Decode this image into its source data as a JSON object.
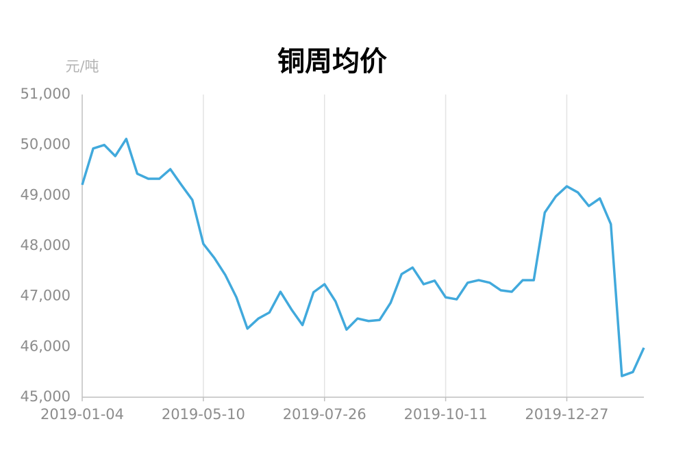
{
  "chart_data": {
    "type": "line",
    "title": "铜周均价",
    "y_label": "元/吨",
    "categories": [
      "2019-01-04",
      null,
      null,
      null,
      null,
      null,
      null,
      null,
      null,
      null,
      null,
      "2019-05-10",
      null,
      null,
      null,
      null,
      null,
      null,
      null,
      null,
      null,
      null,
      "2019-07-26",
      null,
      null,
      null,
      null,
      null,
      null,
      null,
      null,
      null,
      null,
      "2019-10-11",
      null,
      null,
      null,
      null,
      null,
      null,
      null,
      null,
      null,
      null,
      "2019-12-27",
      null,
      null,
      null,
      null,
      null,
      null,
      null
    ],
    "values": [
      49210,
      49930,
      50000,
      49780,
      50120,
      49430,
      49330,
      49330,
      49520,
      49210,
      48910,
      48040,
      47760,
      47420,
      46980,
      46360,
      46560,
      46680,
      47090,
      46740,
      46430,
      47080,
      47240,
      46900,
      46340,
      46560,
      46510,
      46530,
      46870,
      47440,
      47570,
      47240,
      47310,
      46980,
      46940,
      47270,
      47320,
      47270,
      47120,
      47090,
      47320,
      47320,
      48660,
      48980,
      49180,
      49060,
      48790,
      48940,
      48430,
      45420,
      45500,
      45980
    ],
    "color": "#41a9dc",
    "ylim": [
      45000,
      51000
    ],
    "yticks": [
      {
        "value": 45000,
        "label": "45,000"
      },
      {
        "value": 46000,
        "label": "46,000"
      },
      {
        "value": 47000,
        "label": "47,000"
      },
      {
        "value": 48000,
        "label": "48,000"
      },
      {
        "value": 49000,
        "label": "49,000"
      },
      {
        "value": 50000,
        "label": "50,000"
      },
      {
        "value": 51000,
        "label": "51,000"
      }
    ],
    "grid": true
  }
}
